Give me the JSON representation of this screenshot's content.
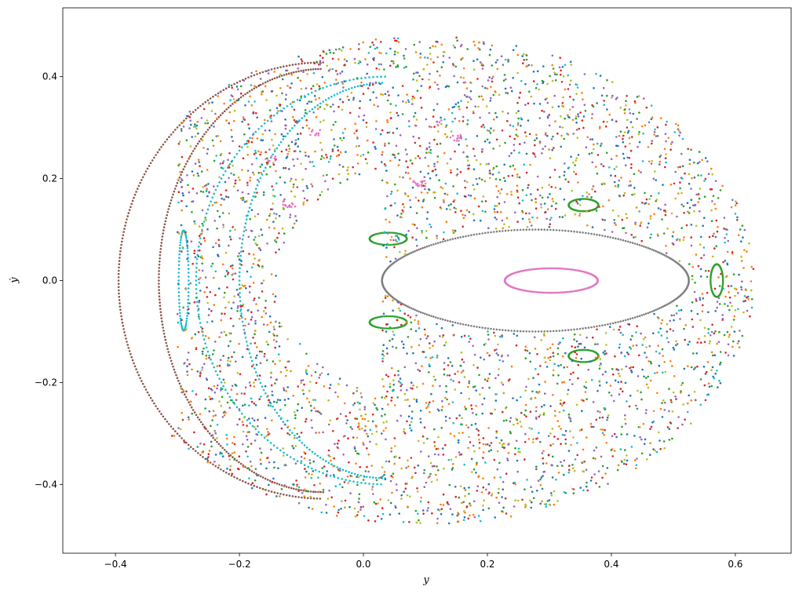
{
  "chart_data": {
    "type": "scatter",
    "title": "",
    "xlabel": "y",
    "ylabel": "ẏ",
    "xlim": [
      -0.485,
      0.69
    ],
    "ylim": [
      -0.535,
      0.535
    ],
    "xticks": [
      -0.4,
      -0.2,
      0.0,
      0.2,
      0.4,
      0.6
    ],
    "xtick_labels": [
      "−0.4",
      "−0.2",
      "0.0",
      "0.2",
      "0.4",
      "0.6"
    ],
    "yticks": [
      -0.4,
      -0.2,
      0.0,
      0.2,
      0.4
    ],
    "ytick_labels": [
      "−0.4",
      "−0.2",
      "0.0",
      "0.2",
      "0.4"
    ],
    "grid": false,
    "legend": "none",
    "marker_size": 2,
    "palette": [
      "#1f77b4",
      "#ff7f0e",
      "#2ca02c",
      "#d62728",
      "#9467bd",
      "#8c564b",
      "#e377c2",
      "#7f7f7f",
      "#bcbd22",
      "#17becf"
    ],
    "series": [
      {
        "color": "#7f7f7f",
        "kind": "curve",
        "shape": "teardrop",
        "x": [
          0.03,
          0.525
        ],
        "y": [
          -0.1,
          0.1
        ],
        "points": 320
      },
      {
        "color": "#e377c2",
        "kind": "curve",
        "shape": "ellipse",
        "center": [
          0.303,
          0.0
        ],
        "radii": [
          0.075,
          0.024
        ],
        "points": 180
      },
      {
        "color": "#8c564b",
        "kind": "curve",
        "shape": "crescent",
        "tips": [
          [
            -0.065,
            0.428
          ],
          [
            -0.065,
            -0.428
          ]
        ],
        "outer_x": -0.395,
        "inner_x": -0.33,
        "points": 420
      },
      {
        "color": "#17becf",
        "kind": "curve",
        "shape": "island",
        "center": [
          -0.29,
          0.0
        ],
        "radii": [
          0.008,
          0.098
        ],
        "points": 80
      },
      {
        "color": "#17becf",
        "kind": "curve",
        "shape": "crescent",
        "tips": [
          [
            0.035,
            0.4
          ],
          [
            0.035,
            -0.4
          ]
        ],
        "outer_x": -0.27,
        "inner_x": -0.2,
        "points": 300
      },
      {
        "color": "#2ca02c",
        "kind": "curve",
        "shape": "island",
        "center": [
          0.57,
          0.0
        ],
        "radii": [
          0.01,
          0.032
        ],
        "points": 60
      },
      {
        "color": "#2ca02c",
        "kind": "curve",
        "shape": "island",
        "center": [
          0.355,
          0.148
        ],
        "radii": [
          0.024,
          0.012
        ],
        "points": 60
      },
      {
        "color": "#2ca02c",
        "kind": "curve",
        "shape": "island",
        "center": [
          0.355,
          -0.148
        ],
        "radii": [
          0.024,
          0.012
        ],
        "points": 60
      },
      {
        "color": "#2ca02c",
        "kind": "curve",
        "shape": "island",
        "center": [
          0.04,
          0.082
        ],
        "radii": [
          0.03,
          0.012
        ],
        "points": 60
      },
      {
        "color": "#2ca02c",
        "kind": "curve",
        "shape": "island",
        "center": [
          0.04,
          -0.082
        ],
        "radii": [
          0.03,
          0.012
        ],
        "points": 60
      },
      {
        "color": "#1f77b4",
        "kind": "chaotic",
        "points": 650
      },
      {
        "color": "#ff7f0e",
        "kind": "chaotic",
        "points": 650
      },
      {
        "color": "#2ca02c",
        "kind": "chaotic",
        "points": 500
      },
      {
        "color": "#d62728",
        "kind": "chaotic",
        "points": 650
      },
      {
        "color": "#9467bd",
        "kind": "chaotic",
        "points": 650
      },
      {
        "color": "#bcbd22",
        "kind": "chaotic",
        "points": 500
      },
      {
        "color": "#17becf",
        "kind": "chaotic",
        "points": 260
      },
      {
        "color": "#e377c2",
        "kind": "chain",
        "x": [
          -0.14,
          0.16
        ],
        "y": [
          0.14,
          0.31
        ],
        "points": 60
      }
    ]
  }
}
